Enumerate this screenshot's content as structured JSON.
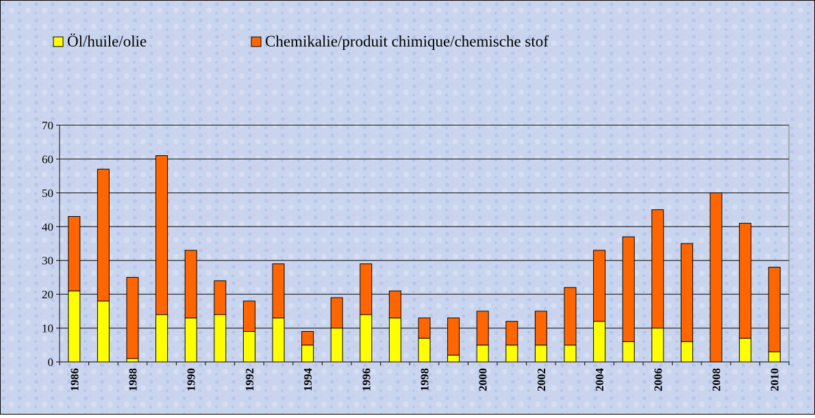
{
  "chart_data": {
    "type": "bar",
    "stacked": true,
    "categories": [
      "1986",
      null,
      "1988",
      null,
      "1990",
      null,
      "1992",
      null,
      "1994",
      null,
      "1996",
      null,
      "1998",
      null,
      "2000",
      null,
      "2002",
      null,
      "2004",
      null,
      "2006",
      null,
      "2008",
      null,
      "2010"
    ],
    "series": [
      {
        "name": "Öl/huile/olie",
        "color": "#ffff00",
        "values": [
          21,
          18,
          1,
          14,
          13,
          14,
          9,
          13,
          5,
          10,
          14,
          13,
          7,
          2,
          5,
          5,
          5,
          5,
          12,
          6,
          10,
          6,
          0,
          7,
          3
        ]
      },
      {
        "name": "Chemikalie/produit chimique/chemische stof",
        "color": "#ff6600",
        "values": [
          22,
          39,
          24,
          47,
          20,
          10,
          9,
          16,
          4,
          9,
          15,
          8,
          6,
          11,
          10,
          7,
          10,
          17,
          21,
          31,
          35,
          29,
          50,
          34,
          25
        ]
      }
    ],
    "ylim": [
      0,
      70
    ],
    "yticks": [
      0,
      10,
      20,
      30,
      40,
      50,
      60,
      70
    ],
    "grid": true,
    "legend": "top"
  }
}
